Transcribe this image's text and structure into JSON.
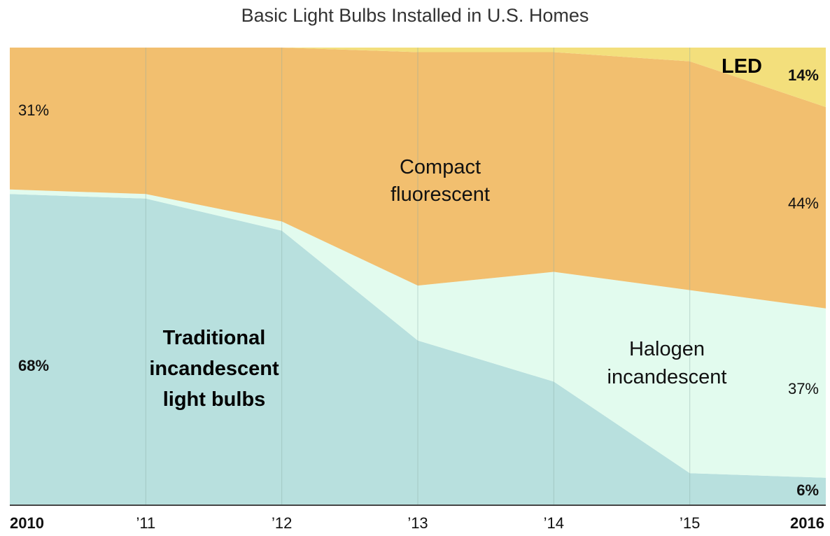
{
  "chart_data": {
    "type": "area",
    "stacked": true,
    "normalized": true,
    "title": "Basic Light Bulbs Installed in U.S. Homes",
    "x": [
      2010,
      2011,
      2012,
      2013,
      2014,
      2015,
      2016
    ],
    "x_tick_labels": [
      "2010",
      "’11",
      "’12",
      "’13",
      "’14",
      "’15",
      "2016"
    ],
    "ylim": [
      0,
      100
    ],
    "series": [
      {
        "key": "traditional",
        "color": "#b8e0de",
        "values": [
          68,
          67,
          60,
          36,
          27,
          7,
          6
        ]
      },
      {
        "key": "halogen",
        "color": "#e2fbee",
        "values": [
          1,
          1,
          2,
          12,
          24,
          40,
          37
        ]
      },
      {
        "key": "cfl",
        "color": "#f2bf6f",
        "values": [
          31,
          32,
          38,
          51,
          48,
          50,
          44
        ]
      },
      {
        "key": "led",
        "color": "#f3df7c",
        "values": [
          0,
          0,
          0,
          1,
          1,
          3,
          14
        ]
      }
    ],
    "area_labels": [
      {
        "series": "traditional",
        "lines": [
          "Traditional",
          "incandescent",
          "light bulbs"
        ],
        "bold": true
      },
      {
        "series": "halogen",
        "lines": [
          "Halogen",
          "incandescent"
        ],
        "bold": false
      },
      {
        "series": "cfl",
        "lines": [
          "Compact",
          "fluorescent"
        ],
        "bold": false
      },
      {
        "series": "led",
        "lines": [
          "LED"
        ],
        "bold": true
      }
    ],
    "data_labels": {
      "left": [
        {
          "series": "cfl",
          "text": "31%",
          "bold": false
        },
        {
          "series": "traditional",
          "text": "68%",
          "bold": true
        }
      ],
      "right": [
        {
          "series": "led",
          "text": "14%",
          "bold": true
        },
        {
          "series": "cfl",
          "text": "44%",
          "bold": false
        },
        {
          "series": "halogen",
          "text": "37%",
          "bold": false
        },
        {
          "series": "traditional",
          "text": "6%",
          "bold": true
        }
      ]
    },
    "grid": {
      "vertical": true,
      "horizontal": false,
      "color": "#8aaaa5"
    },
    "axis_color": "#444444"
  }
}
